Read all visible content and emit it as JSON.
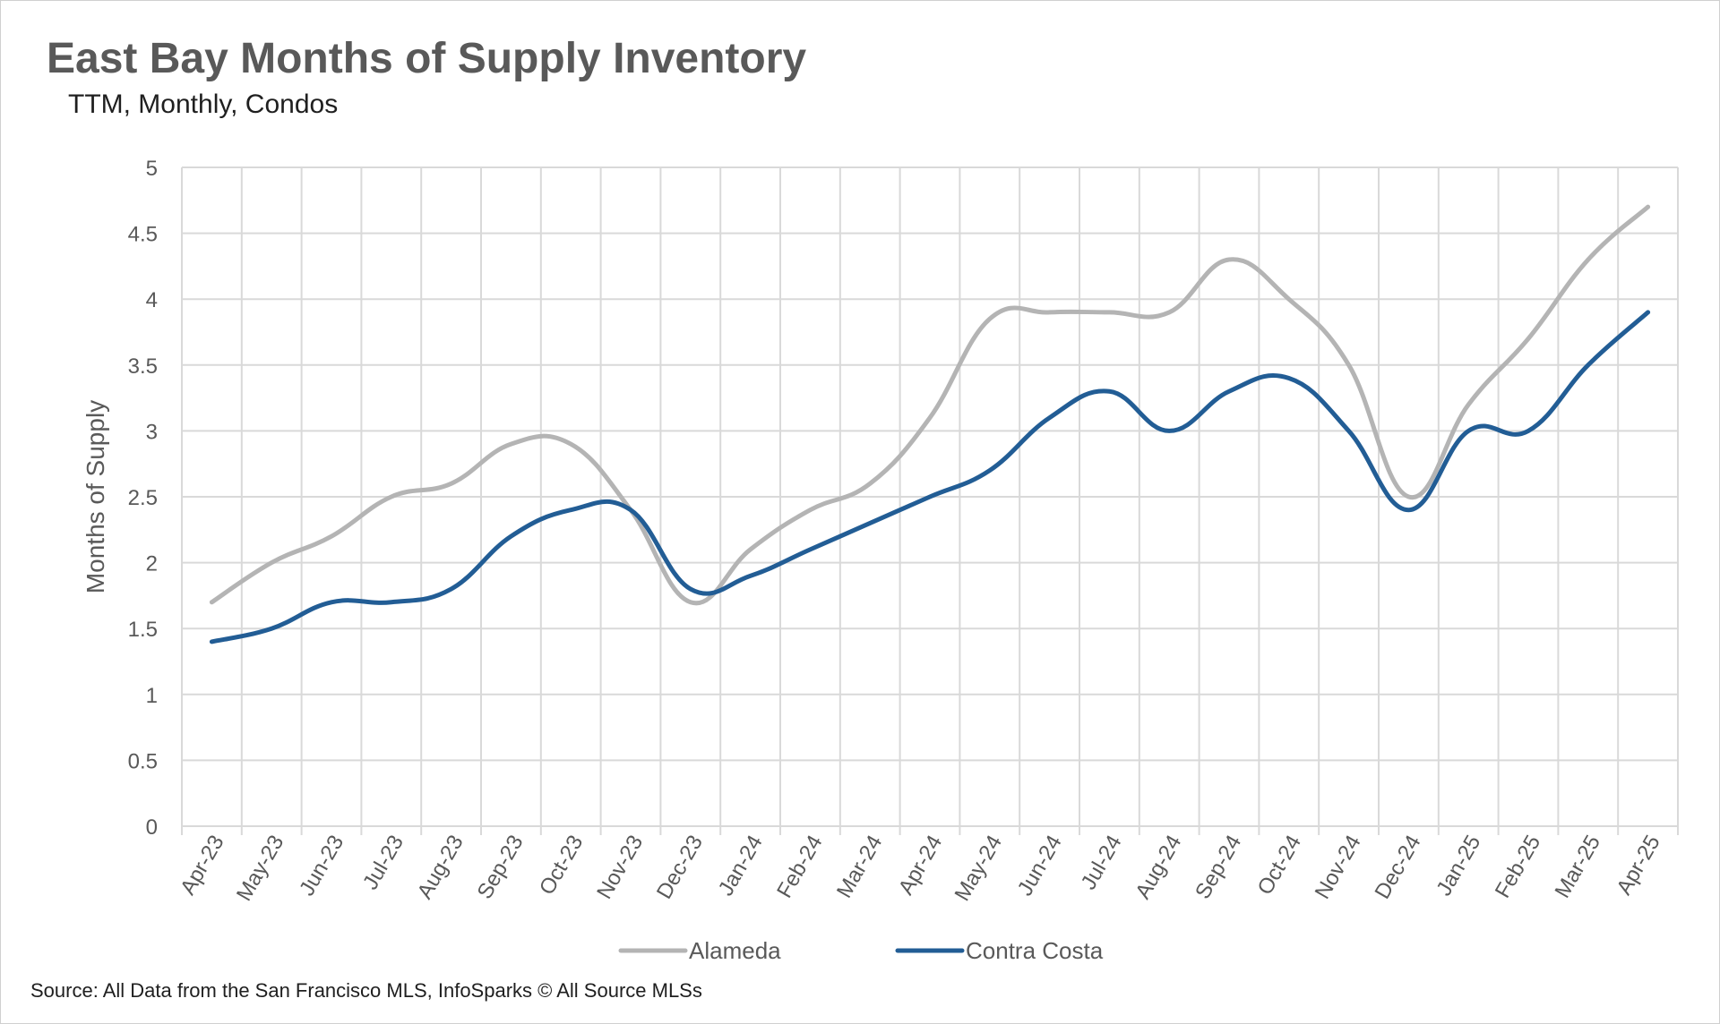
{
  "chart_data": {
    "type": "line",
    "title": "East Bay Months of Supply Inventory",
    "subtitle": "TTM, Monthly, Condos",
    "ylabel": "Months of Supply",
    "xlabel": "",
    "ylim": [
      0,
      5
    ],
    "yticks": [
      "0",
      "0.5",
      "1",
      "1.5",
      "2",
      "2.5",
      "3",
      "3.5",
      "4",
      "4.5",
      "5"
    ],
    "grid": true,
    "legend_position": "bottom",
    "categories": [
      "Apr-23",
      "May-23",
      "Jun-23",
      "Jul-23",
      "Aug-23",
      "Sep-23",
      "Oct-23",
      "Nov-23",
      "Dec-23",
      "Jan-24",
      "Feb-24",
      "Mar-24",
      "Apr-24",
      "May-24",
      "Jun-24",
      "Jul-24",
      "Aug-24",
      "Sep-24",
      "Oct-24",
      "Nov-24",
      "Dec-24",
      "Jan-25",
      "Feb-25",
      "Mar-25",
      "Apr-25"
    ],
    "series": [
      {
        "name": "Alameda",
        "color": "#b4b4b4",
        "values": [
          1.7,
          2.0,
          2.2,
          2.5,
          2.6,
          2.9,
          2.9,
          2.4,
          1.7,
          2.1,
          2.4,
          2.6,
          3.1,
          3.85,
          3.9,
          3.9,
          3.9,
          4.3,
          4.0,
          3.5,
          2.5,
          3.2,
          3.7,
          4.3,
          4.7
        ]
      },
      {
        "name": "Contra Costa",
        "color": "#225d95",
        "values": [
          1.4,
          1.5,
          1.7,
          1.7,
          1.8,
          2.2,
          2.4,
          2.4,
          1.8,
          1.9,
          2.1,
          2.3,
          2.5,
          2.7,
          3.1,
          3.3,
          3.0,
          3.3,
          3.4,
          3.0,
          2.4,
          3.0,
          3.0,
          3.5,
          3.9
        ]
      }
    ],
    "source": "Source: All Data from the San Francisco MLS, InfoSparks © All Source MLSs"
  }
}
